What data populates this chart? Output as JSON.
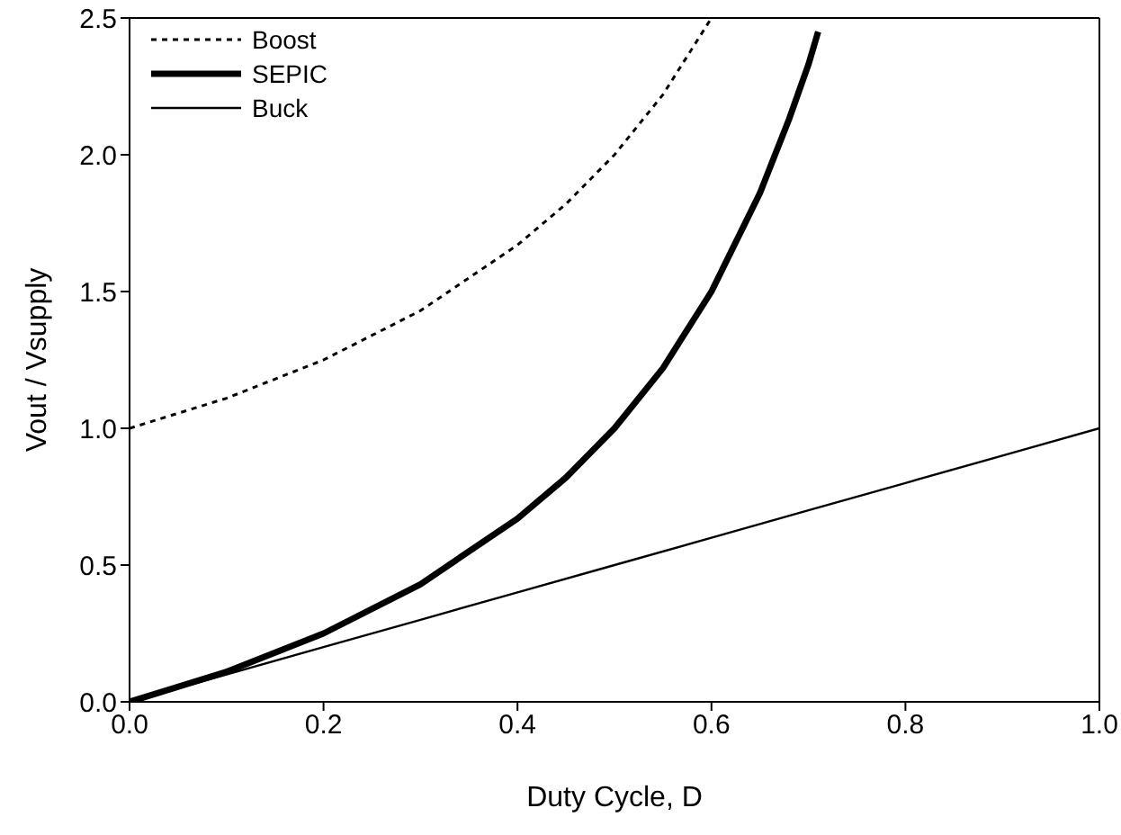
{
  "chart_data": {
    "type": "line",
    "xlabel": "Duty Cycle, D",
    "ylabel": "Vout / Vsupply",
    "xlim": [
      0,
      1
    ],
    "xticks": [
      {
        "value": 0,
        "label": "0.0"
      },
      0.2,
      0.4,
      0.6,
      0.8,
      {
        "value": 1,
        "label": "1.0"
      }
    ],
    "ylim": [
      0,
      2.5
    ],
    "yticks": [
      {
        "value": 0,
        "label": "0.0"
      },
      0.5,
      {
        "value": 1,
        "label": "1.0"
      },
      1.5,
      {
        "value": 2,
        "label": "2.0"
      },
      2.5
    ],
    "grid": false,
    "legend": "top left",
    "marker": "none",
    "series": [
      {
        "name": "Boost",
        "color": "#000000",
        "line_style": "dotted",
        "x": [
          0,
          0.1,
          0.2,
          0.3,
          0.4,
          0.45,
          0.5,
          0.55,
          0.6
        ],
        "values": [
          1,
          1.11,
          1.25,
          1.43,
          1.67,
          1.82,
          2.0,
          2.22,
          2.5
        ]
      },
      {
        "name": "SEPIC",
        "color": "#000000",
        "line_style": "solid",
        "x": [
          0,
          0.1,
          0.2,
          0.3,
          0.4,
          0.45,
          0.5,
          0.55,
          0.6,
          0.65,
          0.68,
          0.7,
          0.71
        ],
        "values": [
          0,
          0.11,
          0.25,
          0.43,
          0.67,
          0.82,
          1.0,
          1.22,
          1.5,
          1.86,
          2.13,
          2.33,
          2.45
        ]
      },
      {
        "name": "Buck",
        "color": "#000000",
        "line_style": "solid",
        "x": [
          0,
          0.1,
          0.2,
          0.3,
          0.4,
          0.5,
          0.6,
          0.7,
          0.8,
          0.9,
          1.0
        ],
        "values": [
          0,
          0.1,
          0.2,
          0.3,
          0.4,
          0.5,
          0.6,
          0.7,
          0.8,
          0.9,
          1.0
        ]
      }
    ]
  }
}
